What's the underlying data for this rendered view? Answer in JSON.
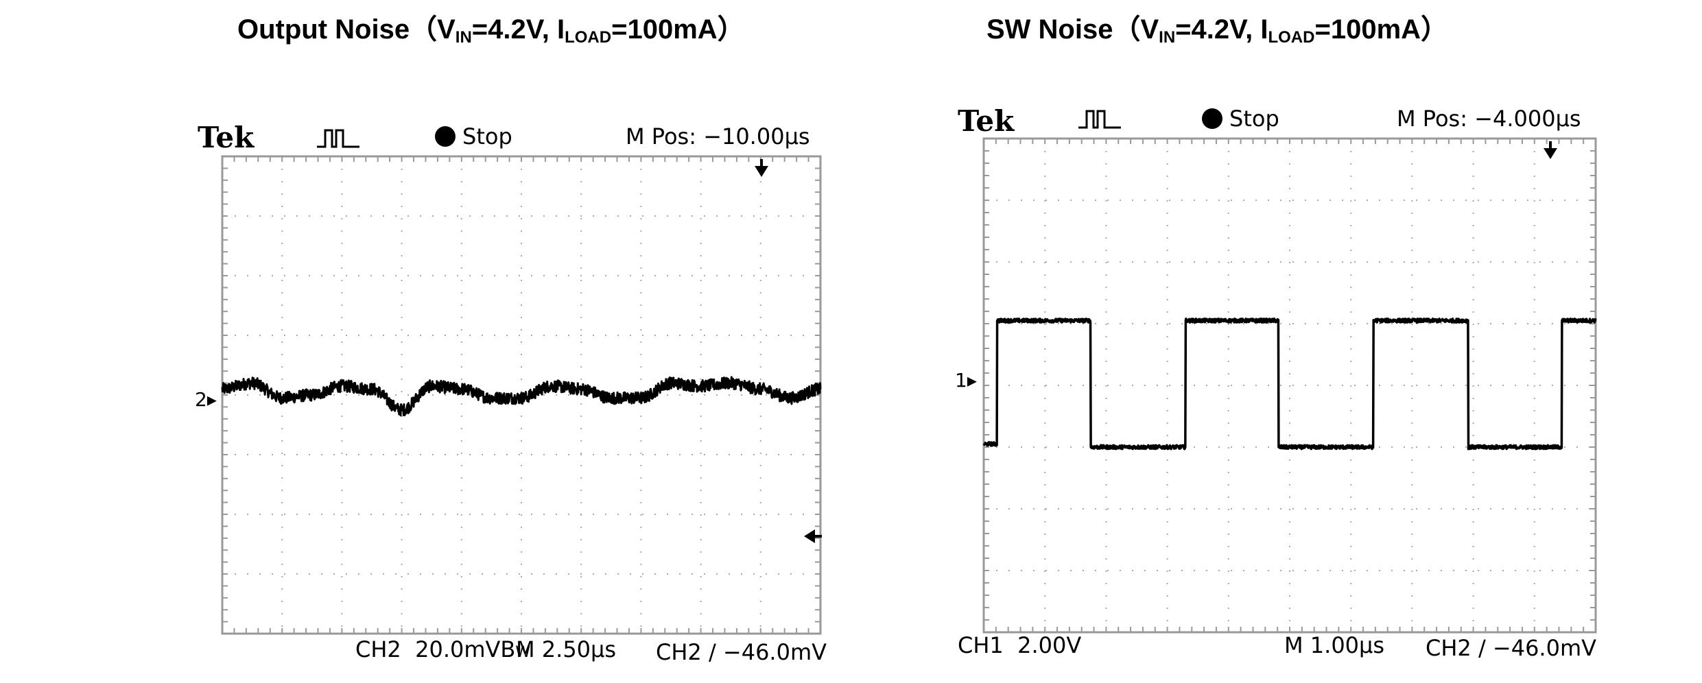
{
  "chart_data": [
    {
      "type": "line",
      "title_main": "Output Noise（V",
      "title_sub1": "IN",
      "title_mid": "=4.2V, I",
      "title_sub2": "LOAD",
      "title_end": "=100mA）",
      "brand": "Tek",
      "status": "Stop",
      "mpos": "M Pos: −10.00µs",
      "channel_label": "CH2",
      "scale": "20.0mV",
      "bw": "B",
      "bw_sub": "W",
      "timebase": "M 2.50µs",
      "trigger": "CH2 ∕ −46.0mV",
      "channel_marker": "2",
      "x_divisions": 10,
      "y_divisions": 8,
      "x_unit": "div",
      "y_unit": "div",
      "xlim": [
        0,
        10
      ],
      "ylim": [
        -4,
        4
      ],
      "series": [
        {
          "x": [
            0,
            0.5,
            1.0,
            1.5,
            2.0,
            2.5,
            3.0,
            3.5,
            4.0,
            4.5,
            5.0,
            5.5,
            6.0,
            6.5,
            7.0,
            7.5,
            8.0,
            8.5,
            9.0,
            9.5,
            10.0
          ],
          "values": [
            0.1,
            0.2,
            -0.05,
            0.0,
            0.15,
            0.1,
            -0.25,
            0.15,
            0.1,
            -0.05,
            -0.05,
            0.15,
            0.1,
            -0.05,
            -0.05,
            0.2,
            0.15,
            0.2,
            0.1,
            -0.05,
            0.1
          ]
        }
      ],
      "noise_amplitude_div": 0.1
    },
    {
      "type": "line",
      "title_main": "SW Noise（V",
      "title_sub1": "IN",
      "title_mid": "=4.2V, I",
      "title_sub2": "LOAD",
      "title_end": "=100mA）",
      "brand": "Tek",
      "status": "Stop",
      "mpos": "M Pos: −4.000µs",
      "channel_label": "CH1",
      "scale": "2.00V",
      "timebase": "M 1.00µs",
      "trigger": "CH2 ∕ −46.0mV",
      "channel_marker": "1",
      "x_divisions": 10,
      "y_divisions": 8,
      "x_unit": "div",
      "y_unit": "div",
      "xlim": [
        0,
        10
      ],
      "ylim": [
        -4,
        4
      ],
      "series": [
        {
          "x": [
            0,
            0.22,
            0.22,
            1.75,
            1.75,
            3.3,
            3.3,
            4.82,
            4.82,
            6.37,
            6.37,
            7.92,
            7.92,
            9.45,
            9.45,
            10.0
          ],
          "values": [
            -0.95,
            -0.95,
            1.05,
            1.05,
            -1.0,
            -1.0,
            1.05,
            1.05,
            -1.0,
            -1.0,
            1.05,
            1.05,
            -1.0,
            -1.0,
            1.05,
            1.05
          ]
        }
      ],
      "noise_amplitude_div": 0.03
    }
  ]
}
